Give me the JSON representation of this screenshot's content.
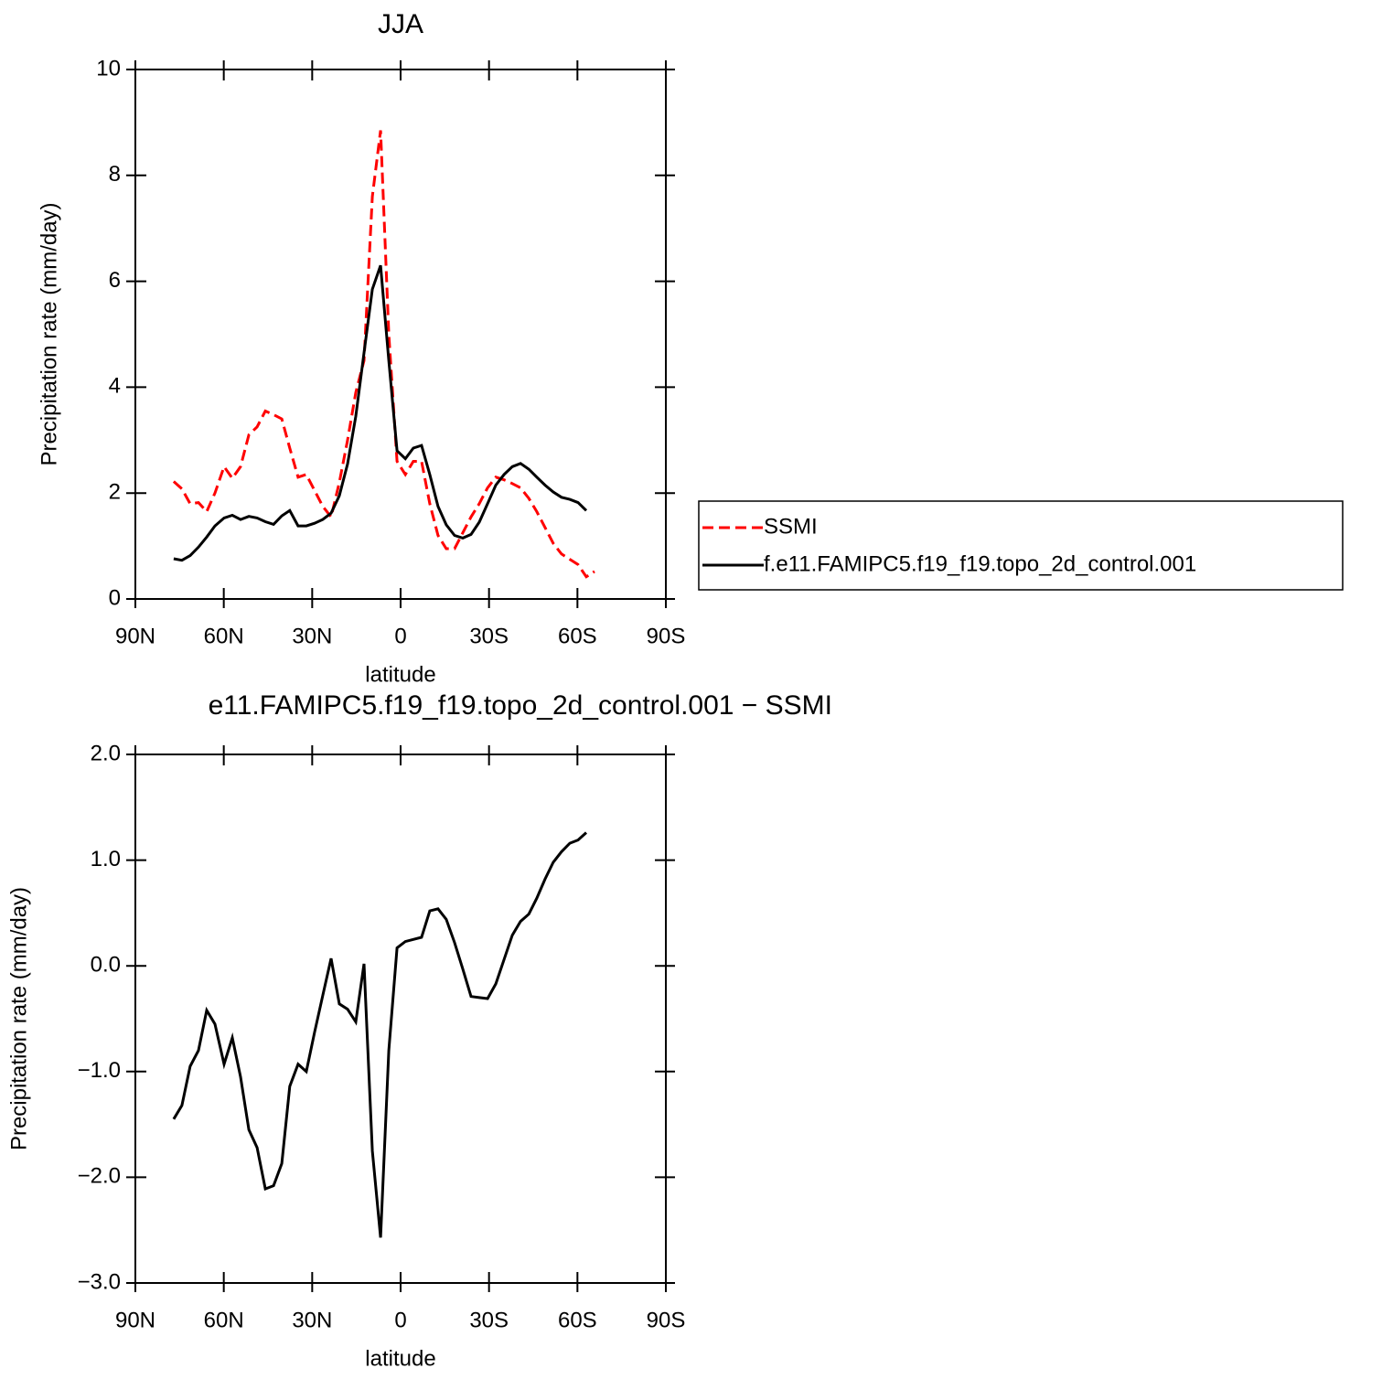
{
  "chart_data": [
    {
      "type": "line",
      "title": "JJA",
      "xlabel": "latitude",
      "ylabel": "Precipitation rate (mm/day)",
      "x": [
        77,
        74.2,
        71.4,
        68.6,
        65.8,
        63.0,
        59.9,
        57.1,
        54.3,
        51.5,
        48.7,
        45.9,
        43.1,
        40.3,
        37.6,
        34.8,
        32.0,
        29.2,
        26.4,
        23.6,
        20.8,
        18.0,
        15.2,
        12.4,
        9.6,
        6.8,
        4.0,
        1.2,
        -1.6,
        -4.3,
        -7.1,
        -9.9,
        -12.7,
        -15.5,
        -18.3,
        -21.1,
        -23.9,
        -26.7,
        -29.5,
        -32.3,
        -35.1,
        -37.9,
        -40.7,
        -43.5,
        -46.2,
        -49.0,
        -51.8,
        -54.6,
        -57.4,
        -60.2,
        -63.0,
        -65.8
      ],
      "series": [
        {
          "name": "SSMI",
          "color": "#ff0000",
          "dashed": true,
          "values": [
            2.22,
            2.08,
            1.8,
            1.82,
            1.65,
            2.0,
            2.5,
            2.28,
            2.5,
            3.1,
            3.25,
            3.55,
            3.48,
            3.4,
            2.85,
            2.3,
            2.35,
            2.05,
            1.75,
            1.55,
            2.2,
            3.0,
            3.9,
            4.5,
            7.6,
            8.85,
            5.0,
            2.6,
            2.35,
            2.6,
            2.6,
            1.8,
            1.2,
            0.95,
            0.95,
            1.25,
            1.55,
            1.8,
            2.1,
            2.3,
            2.25,
            2.18,
            2.1,
            1.9,
            1.65,
            1.35,
            1.05,
            0.85,
            0.75,
            0.65,
            0.42,
            0.52
          ]
        },
        {
          "name": "f.e11.FAMIPC5.f19_f19.topo_2d_control.001",
          "color": "#000000",
          "dashed": false,
          "values": [
            0.76,
            0.73,
            0.82,
            0.98,
            1.17,
            1.38,
            1.53,
            1.58,
            1.5,
            1.56,
            1.53,
            1.46,
            1.41,
            1.57,
            1.67,
            1.38,
            1.38,
            1.43,
            1.5,
            1.62,
            1.95,
            2.55,
            3.45,
            4.65,
            5.85,
            6.3,
            4.5,
            2.8,
            2.65,
            2.85,
            2.9,
            2.35,
            1.75,
            1.4,
            1.2,
            1.15,
            1.22,
            1.45,
            1.8,
            2.15,
            2.35,
            2.5,
            2.56,
            2.45,
            2.3,
            2.15,
            2.02,
            1.92,
            1.88,
            1.82,
            1.67,
            null
          ]
        }
      ],
      "xlim": [
        90,
        -90
      ],
      "xticks": [
        {
          "value": 90,
          "label": "90N"
        },
        {
          "value": 60,
          "label": "60N"
        },
        {
          "value": 30,
          "label": "30N"
        },
        0,
        {
          "value": -30,
          "label": "30S"
        },
        {
          "value": -60,
          "label": "60S"
        },
        {
          "value": -90,
          "label": "90S"
        }
      ],
      "ylim": [
        0,
        10
      ],
      "yticks": [
        0,
        2,
        4,
        6,
        8,
        10
      ],
      "legend": "right"
    },
    {
      "type": "line",
      "title": "e11.FAMIPC5.f19_f19.topo_2d_control.001  −  SSMI",
      "xlabel": "latitude",
      "ylabel": "Precipitation rate (mm/day)",
      "x": [
        77,
        74.2,
        71.4,
        68.6,
        65.8,
        63.0,
        59.9,
        57.1,
        54.3,
        51.5,
        48.7,
        45.9,
        43.1,
        40.3,
        37.6,
        34.8,
        32.0,
        29.2,
        26.4,
        23.6,
        20.8,
        18.0,
        15.2,
        12.4,
        9.6,
        6.8,
        4.0,
        1.2,
        -1.6,
        -4.3,
        -7.1,
        -9.9,
        -12.7,
        -15.5,
        -18.3,
        -21.1,
        -23.9,
        -26.7,
        -29.5,
        -32.3,
        -35.1,
        -37.9,
        -40.7,
        -43.5,
        -46.2,
        -49.0,
        -51.8,
        -54.6,
        -57.4,
        -60.2,
        -63.0,
        -65.8
      ],
      "color": "#000000",
      "values": [
        -1.45,
        -1.32,
        -0.95,
        -0.8,
        -0.42,
        -0.55,
        -0.93,
        -0.68,
        -1.05,
        -1.55,
        -1.72,
        -2.11,
        -2.08,
        -1.87,
        -1.14,
        -0.93,
        -1.0,
        -0.63,
        -0.28,
        0.07,
        -0.36,
        -0.41,
        -0.53,
        0.02,
        -1.75,
        -2.57,
        -0.8,
        0.17,
        0.23,
        0.25,
        0.27,
        0.52,
        0.54,
        0.44,
        0.22,
        -0.03,
        -0.29,
        -0.3,
        -0.31,
        -0.17,
        0.06,
        0.29,
        0.42,
        0.49,
        0.64,
        0.82,
        0.98,
        1.08,
        1.16,
        1.19,
        1.26,
        null
      ],
      "xlim": [
        90,
        -90
      ],
      "xticks": [
        {
          "value": 90,
          "label": "90N"
        },
        {
          "value": 60,
          "label": "60N"
        },
        {
          "value": 30,
          "label": "30N"
        },
        0,
        {
          "value": -30,
          "label": "30S"
        },
        {
          "value": -60,
          "label": "60S"
        },
        {
          "value": -90,
          "label": "90S"
        }
      ],
      "ylim": [
        -3,
        2
      ],
      "yticks": [
        {
          "value": -3,
          "label": "−3.0"
        },
        {
          "value": -2,
          "label": "−2.0"
        },
        {
          "value": -1,
          "label": "−1.0"
        },
        {
          "value": 0,
          "label": "0.0"
        },
        {
          "value": 1,
          "label": "1.0"
        },
        {
          "value": 2,
          "label": "2.0"
        }
      ]
    }
  ]
}
